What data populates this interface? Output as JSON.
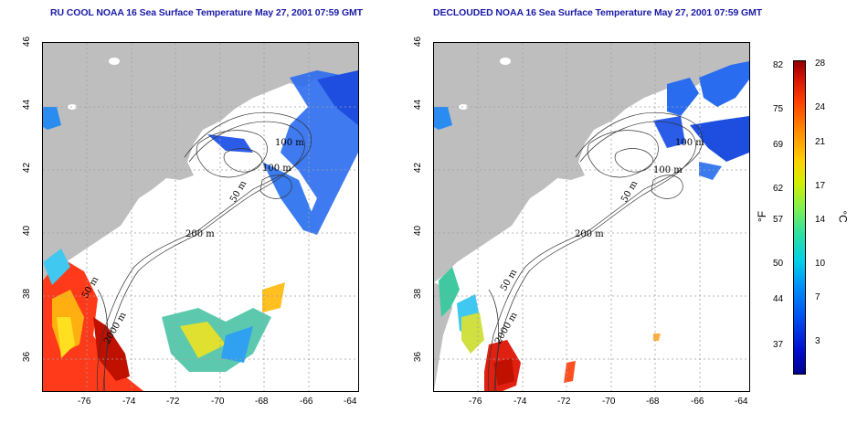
{
  "titles": {
    "left": "RU COOL NOAA 16 Sea Surface Temperature May 27, 2001 07:59 GMT",
    "right": "DECLOUDED NOAA 16 Sea Surface Temperature May 27, 2001 07:59 GMT"
  },
  "axes": {
    "x_ticks": [
      "-76",
      "-74",
      "-72",
      "-70",
      "-68",
      "-66",
      "-64"
    ],
    "y_ticks": [
      "46",
      "44",
      "42",
      "40",
      "38",
      "36"
    ]
  },
  "contours": {
    "left": [
      "100 m",
      "100 m",
      "50 m",
      "200 m",
      "50 m",
      "2000 m"
    ],
    "right": [
      "100 m",
      "100 m",
      "50 m",
      "200 m",
      "50 m",
      "2000 m"
    ]
  },
  "colorbar": {
    "fahrenheit_ticks": [
      "82",
      "75",
      "69",
      "62",
      "57",
      "50",
      "44",
      "37"
    ],
    "celsius_ticks": [
      "28",
      "24",
      "21",
      "17",
      "14",
      "10",
      "7",
      "3"
    ],
    "fahrenheit_unit": "°F",
    "celsius_unit": "°C"
  },
  "colors": {
    "land": "#bebebe",
    "title": "#1a1aa8",
    "grid": "#a0a0a0"
  }
}
